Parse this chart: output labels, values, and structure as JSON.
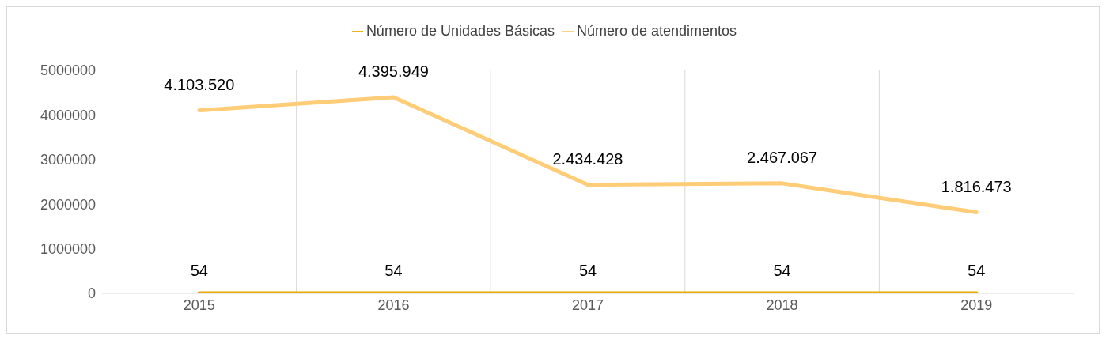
{
  "chart_data": {
    "type": "line",
    "categories": [
      "2015",
      "2016",
      "2017",
      "2018",
      "2019"
    ],
    "series": [
      {
        "name": "Número de Unidades Básicas",
        "color": "#e8a900",
        "values": [
          54,
          54,
          54,
          54,
          54
        ],
        "value_labels": [
          "54",
          "54",
          "54",
          "54",
          "54"
        ]
      },
      {
        "name": "Número de atendimentos",
        "color": "#ffcc77",
        "values": [
          4103520,
          4395949,
          2434428,
          2467067,
          1816473
        ],
        "value_labels": [
          "4.103.520",
          "4.395.949",
          "2.434.428",
          "2.467.067",
          "1.816.473"
        ]
      }
    ],
    "ylim": [
      0,
      5000000
    ],
    "yticks": [
      0,
      1000000,
      2000000,
      3000000,
      4000000,
      5000000
    ],
    "grid": "x",
    "legend": "top",
    "marker": "none",
    "line_style": "solid"
  }
}
